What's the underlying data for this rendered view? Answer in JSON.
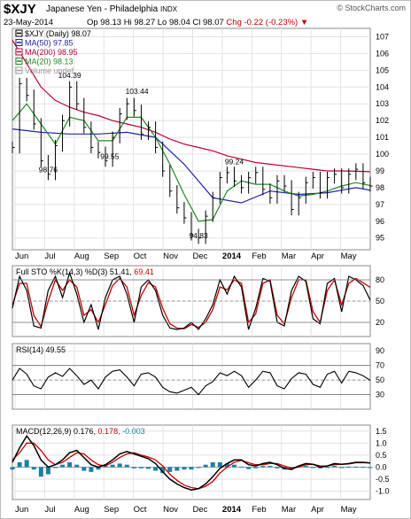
{
  "header": {
    "symbol": "$XJY",
    "name": "Japanese Yen - Philadelphia",
    "exchange": "INDX",
    "copyright": "© StockCharts.com",
    "date": "23-May-2014",
    "open": "Op 98.13",
    "high": "Hi 98.27",
    "low": "Lo 98.04",
    "close": "Cl 98.07",
    "change": "Chg -0.22 (-0.23%)",
    "down_arrow": "▼"
  },
  "colors": {
    "price_bar": "#000000",
    "ma50": "#2222aa",
    "ma200": "#bb0033",
    "ma20": "#228822",
    "volume": "#999999",
    "sto_k": "#000000",
    "sto_d": "#cc0000",
    "macd_line": "#000000",
    "signal": "#cc0000",
    "histogram": "#1a7fa6"
  },
  "chart_data": [
    {
      "type": "line",
      "panel": "price",
      "title": "$XJY (Daily) 98.07",
      "legend": [
        {
          "label": "$XJY (Daily) 98.07",
          "color": "#000000"
        },
        {
          "label": "MA(50) 97.85",
          "color": "#2222aa"
        },
        {
          "label": "MA(200) 98.95",
          "color": "#bb0033"
        },
        {
          "label": "MA(20) 98.13",
          "color": "#228822"
        },
        {
          "label": "Volume undef",
          "color": "#999999"
        }
      ],
      "legend_position": "top-left",
      "x_ticks": [
        "Jun",
        "Jul",
        "Aug",
        "Sep",
        "Oct",
        "Nov",
        "Dec",
        "2014",
        "Feb",
        "Mar",
        "Apr",
        "May"
      ],
      "y_ticks": [
        95,
        96,
        97,
        98,
        99,
        100,
        101,
        102,
        103,
        104,
        105,
        106,
        107
      ],
      "ylim": [
        94.3,
        107.5
      ],
      "grid": true,
      "series": [
        {
          "name": "$XJY",
          "x": [
            0,
            5,
            10,
            15,
            20,
            25,
            30,
            35,
            40,
            45,
            50,
            55,
            60,
            65,
            70,
            75,
            80,
            85,
            90,
            95,
            100,
            105,
            110,
            115,
            120,
            125,
            130,
            135,
            140,
            145,
            150,
            155,
            160,
            165,
            170,
            175,
            180,
            185,
            190,
            195,
            200,
            205,
            210,
            215,
            220,
            225,
            230,
            235,
            240,
            245,
            250
          ],
          "values": [
            100.4,
            104.2,
            103.5,
            101.8,
            99.6,
            98.8,
            100.5,
            102.0,
            104.0,
            103.0,
            101.6,
            100.4,
            100.1,
            99.6,
            101.0,
            102.4,
            103.0,
            102.6,
            101.2,
            101.6,
            100.4,
            99.0,
            97.8,
            96.8,
            96.2,
            95.2,
            95.0,
            96.3,
            97.4,
            98.6,
            98.9,
            98.4,
            98.0,
            98.6,
            98.9,
            97.9,
            97.4,
            98.4,
            98.1,
            96.7,
            97.4,
            98.3,
            98.6,
            97.7,
            98.6,
            98.8,
            98.0,
            98.8,
            99.1,
            98.3,
            98.1
          ]
        },
        {
          "name": "MA(50)",
          "x": [
            0,
            20,
            40,
            60,
            80,
            100,
            120,
            140,
            160,
            180,
            200,
            220,
            240,
            250
          ],
          "values": [
            101.5,
            101.3,
            101.2,
            101.2,
            101.3,
            101.0,
            99.4,
            97.4,
            97.1,
            97.8,
            97.6,
            97.7,
            98.0,
            97.85
          ]
        },
        {
          "name": "MA(200)",
          "x": [
            0,
            10,
            20,
            30,
            40,
            50,
            60,
            70,
            80,
            90,
            100,
            110,
            120,
            130,
            140,
            150,
            160,
            170,
            180,
            190,
            200,
            210,
            220,
            230,
            240,
            250
          ],
          "values": [
            106.8,
            105.4,
            104.0,
            103.2,
            102.8,
            102.5,
            102.3,
            102.0,
            101.8,
            101.6,
            101.3,
            100.9,
            100.6,
            100.4,
            100.2,
            99.9,
            99.7,
            99.5,
            99.4,
            99.3,
            99.2,
            99.1,
            99.0,
            99.0,
            98.98,
            98.95
          ]
        },
        {
          "name": "MA(20)",
          "x": [
            0,
            10,
            20,
            30,
            40,
            50,
            60,
            70,
            80,
            90,
            100,
            110,
            120,
            130,
            140,
            150,
            160,
            170,
            180,
            190,
            200,
            210,
            220,
            230,
            240,
            250
          ],
          "values": [
            102.0,
            103.0,
            101.8,
            100.6,
            102.2,
            102.0,
            100.8,
            100.8,
            102.2,
            102.2,
            101.0,
            99.4,
            97.6,
            96.0,
            96.1,
            97.8,
            98.4,
            98.2,
            98.2,
            97.8,
            97.5,
            97.6,
            97.8,
            98.1,
            98.3,
            98.13
          ]
        }
      ],
      "annotations": [
        {
          "text": "104.39",
          "x": 40,
          "y": 104.39
        },
        {
          "text": "98.76",
          "x": 25,
          "y": 98.76
        },
        {
          "text": "103.44",
          "x": 87,
          "y": 103.44
        },
        {
          "text": "99.55",
          "x": 68,
          "y": 99.55
        },
        {
          "text": "99.24",
          "x": 155,
          "y": 99.24
        },
        {
          "text": "94.83",
          "x": 130,
          "y": 94.83
        }
      ]
    },
    {
      "type": "line",
      "panel": "sto",
      "title": "Full STO %K(14,3) %D(3) 51.41, 69.41",
      "y_ticks": [
        20,
        50,
        80
      ],
      "ylim": [
        0,
        100
      ],
      "grid": true,
      "series": [
        {
          "name": "%K",
          "x": [
            0,
            5,
            10,
            15,
            20,
            25,
            30,
            35,
            40,
            45,
            50,
            55,
            60,
            65,
            70,
            75,
            80,
            85,
            90,
            95,
            100,
            105,
            110,
            115,
            120,
            125,
            130,
            135,
            140,
            145,
            150,
            155,
            160,
            165,
            170,
            175,
            180,
            185,
            190,
            195,
            200,
            205,
            210,
            215,
            220,
            225,
            230,
            235,
            240,
            245,
            250
          ],
          "values": [
            40,
            85,
            65,
            15,
            12,
            65,
            85,
            55,
            90,
            60,
            20,
            45,
            10,
            55,
            80,
            85,
            60,
            20,
            70,
            80,
            65,
            30,
            12,
            10,
            12,
            20,
            10,
            25,
            45,
            80,
            60,
            85,
            70,
            10,
            40,
            82,
            78,
            20,
            15,
            65,
            85,
            78,
            25,
            18,
            75,
            82,
            35,
            85,
            80,
            72,
            51.41
          ]
        },
        {
          "name": "%D",
          "x": [
            0,
            5,
            10,
            15,
            20,
            25,
            30,
            35,
            40,
            45,
            50,
            55,
            60,
            65,
            70,
            75,
            80,
            85,
            90,
            95,
            100,
            105,
            110,
            115,
            120,
            125,
            130,
            135,
            140,
            145,
            150,
            155,
            160,
            165,
            170,
            175,
            180,
            185,
            190,
            195,
            200,
            205,
            210,
            215,
            220,
            225,
            230,
            235,
            240,
            245,
            250
          ],
          "values": [
            45,
            75,
            75,
            30,
            14,
            50,
            80,
            65,
            80,
            70,
            30,
            38,
            20,
            45,
            72,
            82,
            70,
            30,
            58,
            76,
            70,
            40,
            18,
            12,
            11,
            17,
            13,
            20,
            38,
            70,
            66,
            80,
            75,
            20,
            32,
            75,
            80,
            30,
            18,
            55,
            80,
            80,
            35,
            20,
            65,
            80,
            45,
            75,
            82,
            76,
            69.41
          ]
        }
      ]
    },
    {
      "type": "line",
      "panel": "rsi",
      "title": "RSI(14) 49.55",
      "y_ticks": [
        30,
        50,
        70,
        90
      ],
      "ylim": [
        10,
        100
      ],
      "grid": true,
      "series": [
        {
          "name": "RSI(14)",
          "x": [
            0,
            5,
            10,
            15,
            20,
            25,
            30,
            35,
            40,
            45,
            50,
            55,
            60,
            65,
            70,
            75,
            80,
            85,
            90,
            95,
            100,
            105,
            110,
            115,
            120,
            125,
            130,
            135,
            140,
            145,
            150,
            155,
            160,
            165,
            170,
            175,
            180,
            185,
            190,
            195,
            200,
            205,
            210,
            215,
            220,
            225,
            230,
            235,
            240,
            245,
            250
          ],
          "values": [
            50,
            66,
            58,
            42,
            38,
            54,
            60,
            55,
            66,
            56,
            44,
            50,
            38,
            54,
            62,
            64,
            54,
            42,
            58,
            60,
            54,
            40,
            34,
            32,
            36,
            40,
            30,
            42,
            48,
            60,
            56,
            62,
            56,
            40,
            50,
            62,
            60,
            42,
            38,
            52,
            60,
            58,
            44,
            40,
            58,
            62,
            46,
            62,
            60,
            56,
            49.55
          ]
        }
      ]
    },
    {
      "type": "line",
      "panel": "macd",
      "title": "MACD(12,26,9) 0.176, 0.178, -0.003",
      "x_ticks": [
        "Jun",
        "Jul",
        "Aug",
        "Sep",
        "Oct",
        "Nov",
        "Dec",
        "2014",
        "Feb",
        "Mar",
        "Apr",
        "May"
      ],
      "y_ticks": [
        -1.0,
        -0.5,
        0.0,
        0.5,
        1.0,
        1.5
      ],
      "ylim": [
        -1.35,
        1.75
      ],
      "grid": true,
      "series": [
        {
          "name": "MACD",
          "x": [
            0,
            5,
            10,
            15,
            20,
            25,
            30,
            35,
            40,
            45,
            50,
            55,
            60,
            65,
            70,
            75,
            80,
            85,
            90,
            95,
            100,
            105,
            110,
            115,
            120,
            125,
            130,
            135,
            140,
            145,
            150,
            155,
            160,
            165,
            170,
            175,
            180,
            185,
            190,
            195,
            200,
            205,
            210,
            215,
            220,
            225,
            230,
            235,
            240,
            245,
            250
          ],
          "values": [
            0.2,
            0.8,
            1.3,
            0.9,
            0.3,
            0.0,
            0.1,
            0.3,
            0.6,
            0.7,
            0.4,
            0.1,
            0.0,
            0.1,
            0.3,
            0.55,
            0.65,
            0.55,
            0.45,
            0.35,
            0.15,
            -0.2,
            -0.5,
            -0.7,
            -0.85,
            -0.95,
            -0.9,
            -0.7,
            -0.4,
            -0.05,
            0.15,
            0.3,
            0.3,
            0.1,
            0.05,
            0.15,
            0.2,
            0.1,
            -0.05,
            -0.1,
            0.05,
            0.15,
            0.12,
            0.0,
            0.05,
            0.15,
            0.12,
            0.15,
            0.2,
            0.2,
            0.176
          ]
        },
        {
          "name": "Signal",
          "x": [
            0,
            5,
            10,
            15,
            20,
            25,
            30,
            35,
            40,
            45,
            50,
            55,
            60,
            65,
            70,
            75,
            80,
            85,
            90,
            95,
            100,
            105,
            110,
            115,
            120,
            125,
            130,
            135,
            140,
            145,
            150,
            155,
            160,
            165,
            170,
            175,
            180,
            185,
            190,
            195,
            200,
            205,
            210,
            215,
            220,
            225,
            230,
            235,
            240,
            245,
            250
          ],
          "values": [
            0.3,
            0.6,
            1.0,
            1.0,
            0.7,
            0.3,
            0.1,
            0.2,
            0.4,
            0.6,
            0.55,
            0.3,
            0.1,
            0.05,
            0.2,
            0.4,
            0.55,
            0.6,
            0.5,
            0.42,
            0.3,
            0.05,
            -0.3,
            -0.55,
            -0.75,
            -0.85,
            -0.9,
            -0.8,
            -0.6,
            -0.25,
            0.0,
            0.2,
            0.28,
            0.18,
            0.1,
            0.1,
            0.15,
            0.15,
            0.05,
            -0.05,
            0.0,
            0.1,
            0.12,
            0.05,
            0.05,
            0.1,
            0.12,
            0.13,
            0.18,
            0.19,
            0.178
          ]
        },
        {
          "name": "Histogram",
          "x": [
            0,
            5,
            10,
            15,
            20,
            25,
            30,
            35,
            40,
            45,
            50,
            55,
            60,
            65,
            70,
            75,
            80,
            85,
            90,
            95,
            100,
            105,
            110,
            115,
            120,
            125,
            130,
            135,
            140,
            145,
            150,
            155,
            160,
            165,
            170,
            175,
            180,
            185,
            190,
            195,
            200,
            205,
            210,
            215,
            220,
            225,
            230,
            235,
            240,
            245,
            250
          ],
          "values": [
            -0.1,
            0.2,
            0.3,
            -0.1,
            -0.4,
            -0.3,
            0.0,
            0.1,
            0.2,
            0.1,
            -0.15,
            -0.2,
            -0.1,
            0.05,
            0.1,
            0.15,
            0.1,
            -0.05,
            -0.05,
            -0.07,
            -0.15,
            -0.25,
            -0.2,
            -0.15,
            -0.1,
            -0.1,
            0.0,
            0.1,
            0.2,
            0.2,
            0.15,
            0.1,
            0.02,
            -0.08,
            -0.05,
            0.05,
            0.05,
            -0.05,
            -0.1,
            -0.05,
            0.05,
            0.05,
            0.0,
            -0.05,
            0.0,
            0.05,
            0.0,
            0.02,
            0.02,
            0.01,
            -0.003
          ]
        }
      ]
    }
  ]
}
